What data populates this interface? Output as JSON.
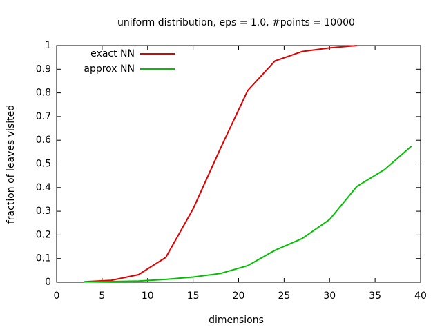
{
  "chart_data": {
    "type": "line",
    "title": "uniform distribution, eps = 1.0, #points = 10000",
    "x_label": "dimensions",
    "y_label": "fraction of leaves visited",
    "xlim": [
      0,
      40
    ],
    "xticks": [
      0,
      5,
      10,
      15,
      20,
      25,
      30,
      35,
      40
    ],
    "ylim": [
      0,
      1
    ],
    "yticks": [
      0,
      0.1,
      0.2,
      0.3,
      0.4,
      0.5,
      0.6,
      0.7,
      0.8,
      0.9,
      1
    ],
    "legend": "top-left",
    "series": [
      {
        "name": "exact NN",
        "color": "#e00000",
        "x": [
          3,
          6,
          9,
          12,
          15,
          18,
          21,
          24,
          27,
          30,
          33
        ],
        "values": [
          0.002,
          0.008,
          0.032,
          0.105,
          0.31,
          0.565,
          0.81,
          0.935,
          0.975,
          0.99,
          1.0
        ]
      },
      {
        "name": "approx NN",
        "color": "#00c000",
        "x": [
          3,
          6,
          9,
          12,
          15,
          18,
          21,
          24,
          27,
          30,
          33,
          36,
          39
        ],
        "values": [
          0.001,
          0.003,
          0.005,
          0.012,
          0.022,
          0.037,
          0.07,
          0.135,
          0.185,
          0.265,
          0.405,
          0.475,
          0.575
        ]
      }
    ]
  }
}
